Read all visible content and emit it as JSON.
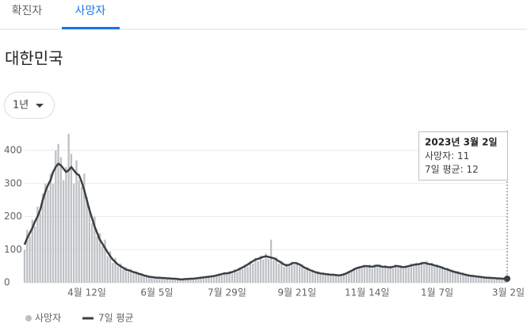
{
  "tabs": [
    "확진자",
    "사망자"
  ],
  "heading": "대한민국",
  "range_selector": "1년",
  "chart_data": {
    "type": "bar-line",
    "categories": [
      null,
      null,
      null,
      null,
      null,
      null,
      null,
      null,
      null,
      null,
      null,
      null,
      null,
      null,
      null,
      null,
      null,
      null,
      null,
      null,
      null,
      null,
      null,
      null,
      "4월 12일",
      null,
      null,
      null,
      null,
      null,
      null,
      null,
      null,
      null,
      null,
      null,
      null,
      null,
      null,
      null,
      null,
      null,
      null,
      null,
      null,
      null,
      null,
      null,
      null,
      null,
      null,
      "6월 5일",
      null,
      null,
      null,
      null,
      null,
      null,
      null,
      null,
      null,
      null,
      null,
      null,
      null,
      null,
      null,
      null,
      null,
      null,
      null,
      null,
      null,
      null,
      null,
      null,
      null,
      null,
      "7월 29일",
      null,
      null,
      null,
      null,
      null,
      null,
      null,
      null,
      null,
      null,
      null,
      null,
      null,
      null,
      null,
      null,
      null,
      null,
      null,
      null,
      null,
      null,
      null,
      null,
      null,
      null,
      "9월 21일",
      null,
      null,
      null,
      null,
      null,
      null,
      null,
      null,
      null,
      null,
      null,
      null,
      null,
      null,
      null,
      null,
      null,
      null,
      null,
      null,
      null,
      null,
      null,
      null,
      null,
      null,
      "11월 14일",
      null,
      null,
      null,
      null,
      null,
      null,
      null,
      null,
      null,
      null,
      null,
      null,
      null,
      null,
      null,
      null,
      null,
      null,
      null,
      null,
      null,
      null,
      null,
      null,
      null,
      null,
      "1월 7일",
      null,
      null,
      null,
      null,
      null,
      null,
      null,
      null,
      null,
      null,
      null,
      null,
      null,
      null,
      null,
      null,
      null,
      null,
      null,
      null,
      null,
      null,
      null,
      null,
      null,
      null,
      "3월 2일"
    ],
    "series": [
      {
        "name": "사망자",
        "type": "bar",
        "color": "#bdc1c6",
        "values": [
          100,
          160,
          140,
          190,
          170,
          230,
          210,
          270,
          300,
          280,
          330,
          300,
          400,
          420,
          380,
          310,
          350,
          450,
          390,
          300,
          370,
          310,
          290,
          330,
          260,
          230,
          180,
          200,
          140,
          150,
          110,
          130,
          80,
          95,
          60,
          75,
          50,
          58,
          40,
          48,
          35,
          42,
          28,
          33,
          25,
          29,
          20,
          24,
          16,
          19,
          14,
          18,
          12,
          17,
          13,
          15,
          11,
          14,
          10,
          12,
          8,
          12,
          9,
          13,
          11,
          14,
          12,
          16,
          13,
          18,
          15,
          20,
          17,
          23,
          19,
          27,
          22,
          31,
          25,
          34,
          28,
          40,
          33,
          47,
          41,
          55,
          48,
          66,
          58,
          75,
          65,
          82,
          70,
          88,
          72,
          130,
          68,
          78,
          58,
          66,
          48,
          58,
          50,
          64,
          55,
          63,
          50,
          56,
          40,
          47,
          33,
          40,
          28,
          34,
          25,
          31,
          23,
          29,
          21,
          27,
          20,
          25,
          21,
          29,
          25,
          36,
          32,
          45,
          40,
          50,
          44,
          54,
          46,
          55,
          43,
          56,
          48,
          55,
          44,
          53,
          43,
          51,
          44,
          56,
          46,
          53,
          43,
          52,
          46,
          58,
          50,
          60,
          52,
          64,
          55,
          66,
          52,
          60,
          48,
          56,
          44,
          50,
          38,
          45,
          33,
          39,
          29,
          35,
          25,
          31,
          21,
          26,
          19,
          23,
          17,
          21,
          15,
          19,
          13,
          17,
          12,
          16,
          11,
          15,
          11,
          13,
          11
        ]
      },
      {
        "name": "7일 평균",
        "type": "line",
        "color": "#3c4043",
        "values": [
          115,
          135,
          150,
          165,
          185,
          200,
          220,
          250,
          275,
          295,
          310,
          335,
          350,
          360,
          355,
          345,
          335,
          340,
          350,
          340,
          330,
          325,
          305,
          280,
          250,
          220,
          195,
          170,
          150,
          130,
          118,
          105,
          92,
          80,
          70,
          62,
          55,
          50,
          45,
          40,
          38,
          35,
          32,
          30,
          27,
          25,
          22,
          20,
          18,
          17,
          16,
          15,
          15,
          14,
          14,
          13,
          13,
          12,
          12,
          11,
          10,
          10,
          11,
          11,
          12,
          12,
          13,
          14,
          15,
          16,
          17,
          18,
          19,
          20,
          22,
          24,
          26,
          28,
          28,
          30,
          32,
          35,
          38,
          42,
          46,
          50,
          55,
          60,
          65,
          70,
          72,
          75,
          78,
          80,
          78,
          76,
          74,
          70,
          65,
          60,
          55,
          52,
          54,
          58,
          60,
          58,
          55,
          50,
          45,
          42,
          38,
          35,
          32,
          30,
          28,
          27,
          26,
          25,
          24,
          24,
          23,
          22,
          23,
          25,
          28,
          32,
          36,
          40,
          44,
          46,
          48,
          50,
          50,
          49,
          48,
          50,
          52,
          50,
          48,
          48,
          47,
          46,
          48,
          50,
          50,
          48,
          47,
          48,
          50,
          52,
          54,
          55,
          56,
          58,
          60,
          58,
          56,
          55,
          52,
          50,
          48,
          45,
          42,
          40,
          37,
          34,
          32,
          30,
          28,
          26,
          24,
          22,
          21,
          20,
          19,
          18,
          17,
          16,
          15,
          15,
          14,
          14,
          13,
          13,
          12,
          12,
          12
        ]
      }
    ],
    "ylim": [
      0,
      460
    ],
    "yticks": [
      0,
      100,
      200,
      300,
      400
    ],
    "grid": true,
    "tooltip": {
      "date": "2023년 3월 2일"
    }
  }
}
